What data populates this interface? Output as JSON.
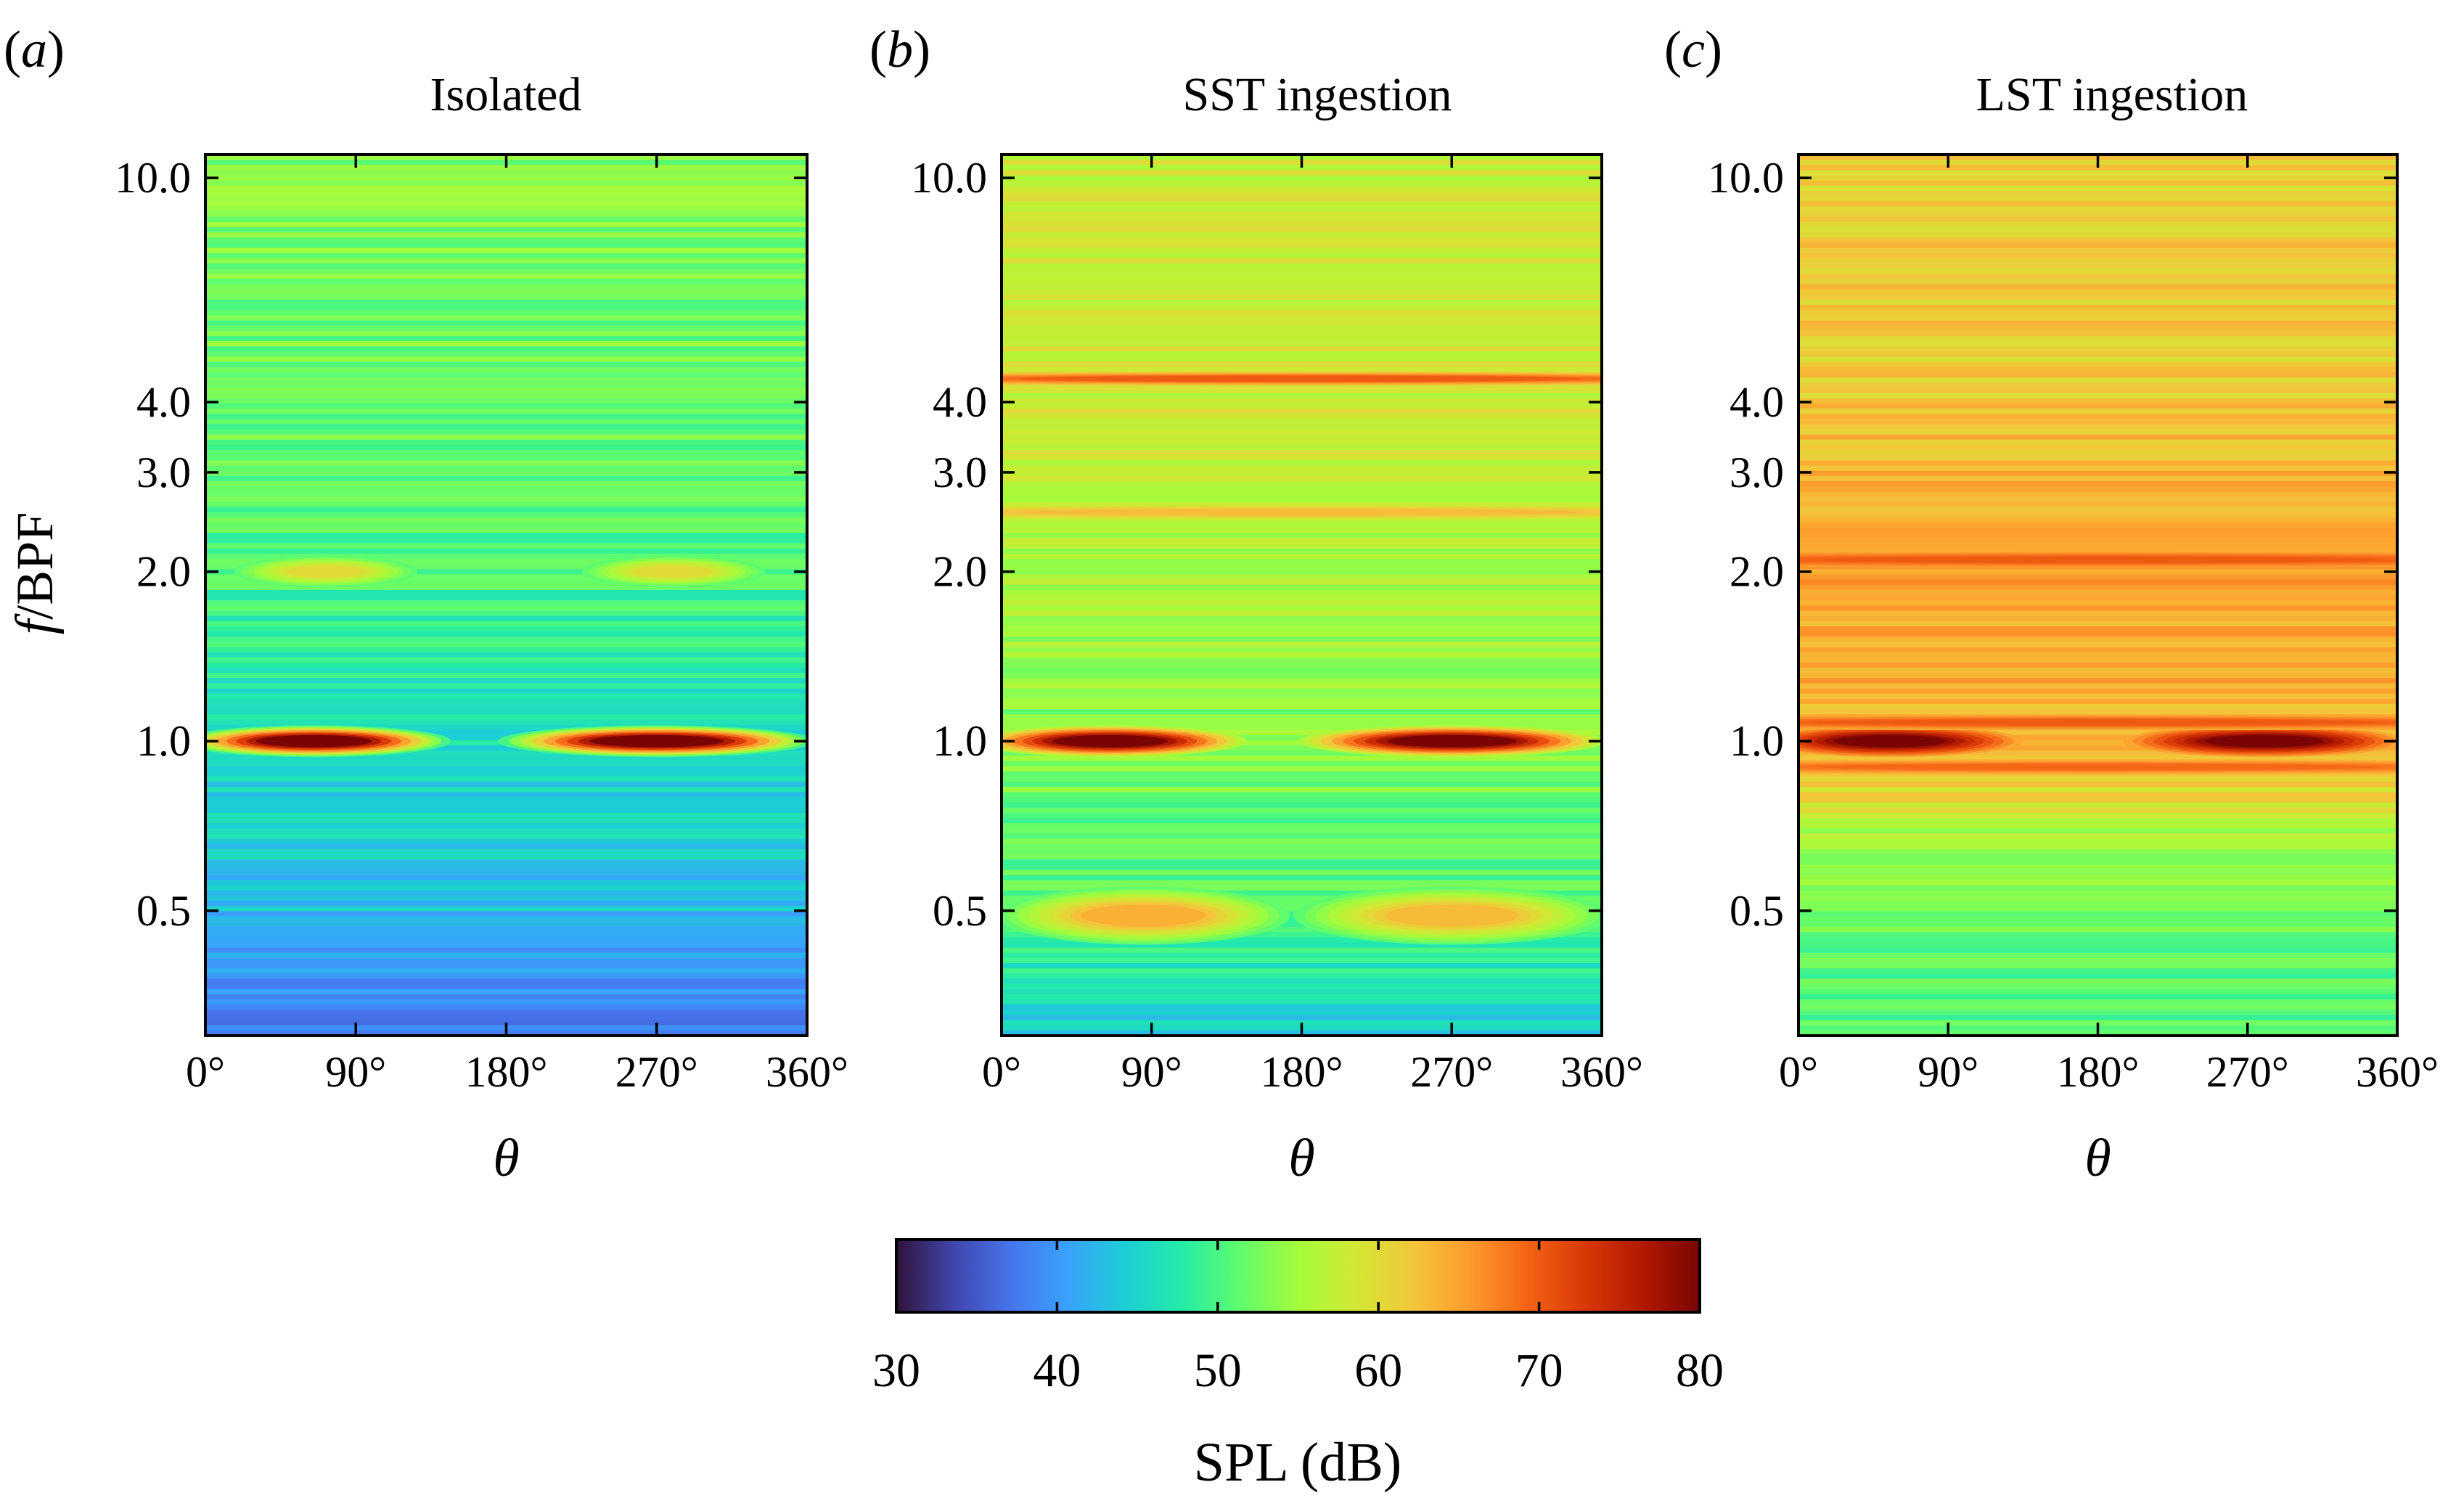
{
  "figure": {
    "ylabel_italic": "f",
    "ylabel_rest": "/BPF",
    "xlabel": "θ",
    "ytick_labels": [
      "10.0",
      "4.0",
      "3.0",
      "2.0",
      "1.0",
      "0.5"
    ],
    "xtick_labels": [
      "0°",
      "90°",
      "180°",
      "270°",
      "360°"
    ],
    "colorbar": {
      "label": "SPL (dB)",
      "colormap": "turbo",
      "tick_labels": [
        "30",
        "40",
        "50",
        "60",
        "70",
        "80"
      ]
    }
  },
  "chart_data": [
    {
      "type": "heatmap",
      "panel": "(a)",
      "panel_letter": "a",
      "title": "Isolated",
      "xlabel": "θ",
      "ylabel": "f/BPF",
      "xlim": [
        0,
        360
      ],
      "xticks": [
        0,
        90,
        180,
        270,
        360
      ],
      "ylim": [
        0.3,
        11
      ],
      "yscale": "log",
      "yticks": [
        0.5,
        1.0,
        2.0,
        3.0,
        4.0,
        10.0
      ],
      "zlim": [
        30,
        80
      ],
      "background_spl_by_freq": [
        [
          0.3,
          38
        ],
        [
          0.5,
          43
        ],
        [
          0.8,
          45
        ],
        [
          1.2,
          47
        ],
        [
          2.0,
          50
        ],
        [
          4.0,
          52
        ],
        [
          10.0,
          53
        ],
        [
          11,
          53
        ]
      ],
      "features": [
        {
          "f": 1.0,
          "theta_center": 65,
          "theta_halfwidth": 82,
          "peak_spl": 80
        },
        {
          "f": 1.0,
          "theta_center": 270,
          "theta_halfwidth": 95,
          "peak_spl": 80
        },
        {
          "f": 2.0,
          "theta_center": 72,
          "theta_halfwidth": 55,
          "peak_spl": 60
        },
        {
          "f": 2.0,
          "theta_center": 280,
          "theta_halfwidth": 55,
          "peak_spl": 60
        }
      ]
    },
    {
      "type": "heatmap",
      "panel": "(b)",
      "panel_letter": "b",
      "title": "SST ingestion",
      "xlabel": "θ",
      "ylabel": "f/BPF",
      "xlim": [
        0,
        360
      ],
      "xticks": [
        0,
        90,
        180,
        270,
        360
      ],
      "ylim": [
        0.3,
        11
      ],
      "yscale": "log",
      "yticks": [
        0.5,
        1.0,
        2.0,
        3.0,
        4.0,
        10.0
      ],
      "zlim": [
        30,
        80
      ],
      "background_spl_by_freq": [
        [
          0.3,
          44
        ],
        [
          0.5,
          50
        ],
        [
          0.8,
          52
        ],
        [
          1.2,
          54
        ],
        [
          2.0,
          56
        ],
        [
          4.0,
          58
        ],
        [
          10.0,
          58
        ],
        [
          11,
          57
        ]
      ],
      "features": [
        {
          "f": 1.0,
          "theta_center": 65,
          "theta_halfwidth": 82,
          "peak_spl": 80
        },
        {
          "f": 1.0,
          "theta_center": 270,
          "theta_halfwidth": 92,
          "peak_spl": 80
        },
        {
          "f": 0.49,
          "theta_center": 85,
          "theta_halfwidth": 88,
          "peak_spl": 64
        },
        {
          "f": 0.49,
          "theta_center": 270,
          "theta_halfwidth": 95,
          "peak_spl": 63
        },
        {
          "f": 4.4,
          "theta_center": 180,
          "theta_halfwidth": 400,
          "peak_spl": 70
        },
        {
          "f": 2.55,
          "theta_center": 180,
          "theta_halfwidth": 400,
          "peak_spl": 63
        }
      ]
    },
    {
      "type": "heatmap",
      "panel": "(c)",
      "panel_letter": "c",
      "title": "LST ingestion",
      "xlabel": "θ",
      "ylabel": "f/BPF",
      "xlim": [
        0,
        360
      ],
      "xticks": [
        0,
        90,
        180,
        270,
        360
      ],
      "ylim": [
        0.3,
        11
      ],
      "yscale": "log",
      "yticks": [
        0.5,
        1.0,
        2.0,
        3.0,
        4.0,
        10.0
      ],
      "zlim": [
        30,
        80
      ],
      "background_spl_by_freq": [
        [
          0.3,
          50
        ],
        [
          0.5,
          52
        ],
        [
          0.7,
          56
        ],
        [
          0.85,
          62
        ],
        [
          1.2,
          64
        ],
        [
          2.0,
          65
        ],
        [
          4.0,
          62
        ],
        [
          10.0,
          61
        ],
        [
          11,
          61
        ]
      ],
      "features": [
        {
          "f": 1.0,
          "theta_center": 55,
          "theta_halfwidth": 80,
          "peak_spl": 80
        },
        {
          "f": 1.0,
          "theta_center": 280,
          "theta_halfwidth": 85,
          "peak_spl": 80
        },
        {
          "f": 2.1,
          "theta_center": 180,
          "theta_halfwidth": 400,
          "peak_spl": 70
        },
        {
          "f": 1.08,
          "theta_center": 180,
          "theta_halfwidth": 400,
          "peak_spl": 70
        },
        {
          "f": 0.9,
          "theta_center": 180,
          "theta_halfwidth": 400,
          "peak_spl": 69
        }
      ]
    }
  ]
}
